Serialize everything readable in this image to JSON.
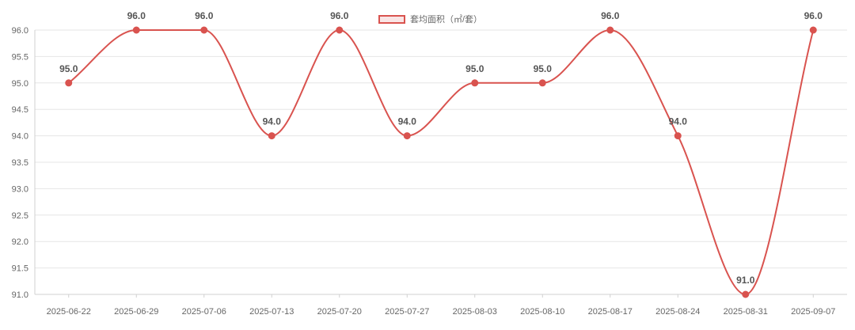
{
  "chart_data": {
    "type": "line",
    "categories": [
      "2025-06-22",
      "2025-06-29",
      "2025-07-06",
      "2025-07-13",
      "2025-07-20",
      "2025-07-27",
      "2025-08-03",
      "2025-08-10",
      "2025-08-17",
      "2025-08-24",
      "2025-08-31",
      "2025-09-07"
    ],
    "series": [
      {
        "name": "套均面积（㎡/套）",
        "values": [
          95.0,
          96.0,
          96.0,
          94.0,
          96.0,
          94.0,
          95.0,
          95.0,
          96.0,
          94.0,
          91.0,
          96.0
        ],
        "color": "#d9534f"
      }
    ],
    "data_labels": [
      "95.0",
      "96.0",
      "96.0",
      "94.0",
      "96.0",
      "94.0",
      "95.0",
      "95.0",
      "96.0",
      "94.0",
      "91.0",
      "96.0"
    ],
    "y_ticks": [
      "91.0",
      "91.5",
      "92.0",
      "92.5",
      "93.0",
      "93.5",
      "94.0",
      "94.5",
      "95.0",
      "95.5",
      "96.0"
    ],
    "ylim": [
      91.0,
      96.0
    ],
    "legend_position": "top-center",
    "grid": true,
    "smooth": true,
    "title": "",
    "xlabel": "",
    "ylabel": ""
  }
}
